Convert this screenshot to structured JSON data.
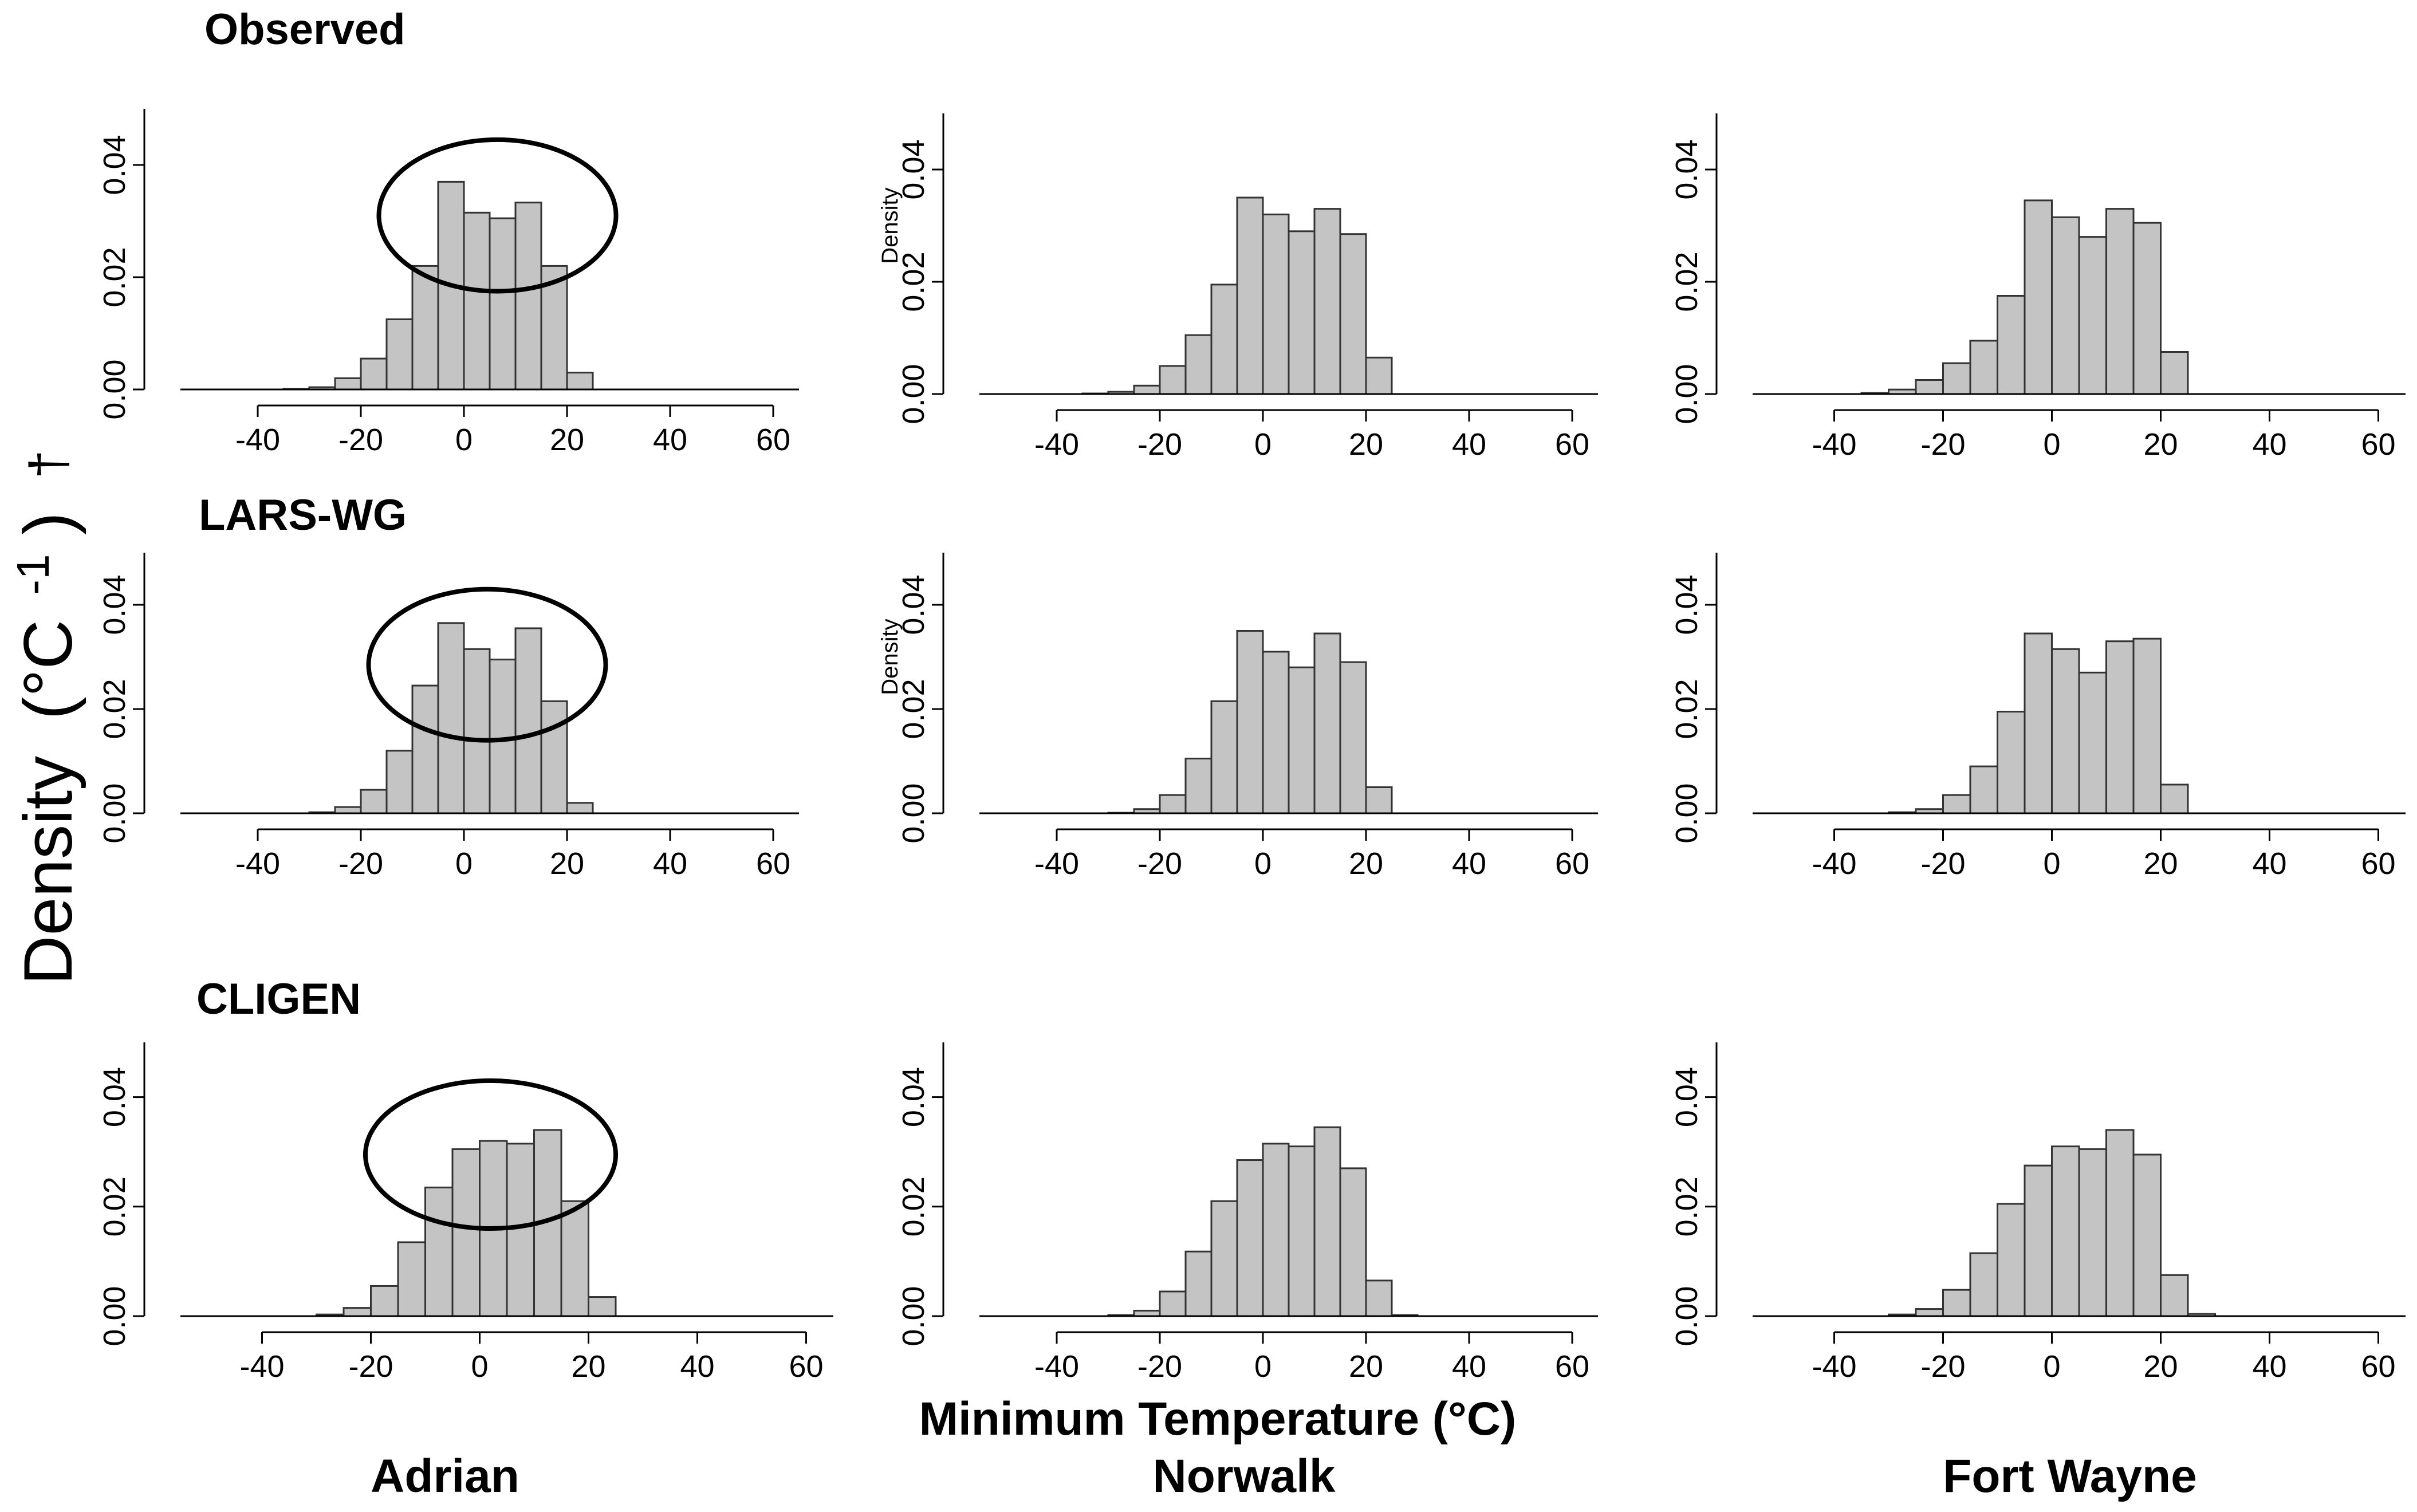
{
  "figure": {
    "yaxis_title": "Density",
    "yaxis_unit": "(°C",
    "yaxis_exp": "-1",
    "yaxis_close": ")",
    "yaxis_mark": "†",
    "xaxis_title": "Minimum Temperature (°C)",
    "row_titles": [
      "Observed",
      "LARS-WG",
      "CLIGEN"
    ],
    "col_titles": [
      "Adrian",
      "Norwalk",
      "Fort Wayne"
    ],
    "inner_density_label": "Density",
    "colors": {
      "bar_fill": "#c4c4c4",
      "bar_stroke": "#333333",
      "axis": "#000000",
      "ellipse": "#000000"
    }
  },
  "chart_data": [
    {
      "id": "observed-adrian",
      "type": "bar",
      "model": "Observed",
      "station": "Adrian",
      "xlabel": "",
      "ylabel": "Density",
      "xlim": [
        -55,
        65
      ],
      "ylim": [
        0,
        0.05
      ],
      "xticks": [
        -40,
        -20,
        0,
        20,
        40,
        60
      ],
      "yticks": [
        0.0,
        0.02,
        0.04
      ],
      "xtick_labels": [
        "-40",
        "-20",
        "0",
        "20",
        "40",
        "60"
      ],
      "ytick_labels": [
        "0.00",
        "0.02",
        "0.04"
      ],
      "bin_edges": [
        -35,
        -30,
        -25,
        -20,
        -15,
        -10,
        -5,
        0,
        5,
        10,
        15,
        20,
        25
      ],
      "values": [
        0.0001,
        0.0004,
        0.002,
        0.0055,
        0.0125,
        0.022,
        0.037,
        0.0315,
        0.0305,
        0.0333,
        0.022,
        0.003
      ],
      "highlight_ellipse": {
        "center_x": 6.5,
        "center_y": 0.031,
        "radius_x": 23,
        "radius_y": 0.0135
      }
    },
    {
      "id": "observed-norwalk",
      "type": "bar",
      "model": "Observed",
      "station": "Norwalk",
      "xlabel": "",
      "ylabel": "Density",
      "xlim": [
        -55,
        65
      ],
      "ylim": [
        0,
        0.05
      ],
      "xticks": [
        -40,
        -20,
        0,
        20,
        40,
        60
      ],
      "yticks": [
        0.0,
        0.02,
        0.04
      ],
      "xtick_labels": [
        "-40",
        "-20",
        "0",
        "20",
        "40",
        "60"
      ],
      "ytick_labels": [
        "0.00",
        "0.02",
        "0.04"
      ],
      "bin_edges": [
        -35,
        -30,
        -25,
        -20,
        -15,
        -10,
        -5,
        0,
        5,
        10,
        15,
        20,
        25,
        30
      ],
      "values": [
        0.0001,
        0.0004,
        0.0015,
        0.005,
        0.0105,
        0.0195,
        0.035,
        0.032,
        0.029,
        0.033,
        0.0285,
        0.0065,
        0
      ],
      "show_small_density": true
    },
    {
      "id": "observed-fortwayne",
      "type": "bar",
      "model": "Observed",
      "station": "Fort Wayne",
      "xlabel": "",
      "ylabel": "Density",
      "xlim": [
        -55,
        65
      ],
      "ylim": [
        0,
        0.05
      ],
      "xticks": [
        -40,
        -20,
        0,
        20,
        40,
        60
      ],
      "yticks": [
        0.0,
        0.02,
        0.04
      ],
      "xtick_labels": [
        "-40",
        "-20",
        "0",
        "20",
        "40",
        "60"
      ],
      "ytick_labels": [
        "0.00",
        "0.02",
        "0.04"
      ],
      "bin_edges": [
        -35,
        -30,
        -25,
        -20,
        -15,
        -10,
        -5,
        0,
        5,
        10,
        15,
        20,
        25
      ],
      "values": [
        0.0002,
        0.0008,
        0.0025,
        0.0055,
        0.0095,
        0.0175,
        0.0345,
        0.0315,
        0.028,
        0.033,
        0.0305,
        0.0075
      ]
    },
    {
      "id": "larswg-adrian",
      "type": "bar",
      "model": "LARS-WG",
      "station": "Adrian",
      "xlabel": "",
      "ylabel": "Density",
      "xlim": [
        -55,
        65
      ],
      "ylim": [
        0,
        0.05
      ],
      "xticks": [
        -40,
        -20,
        0,
        20,
        40,
        60
      ],
      "yticks": [
        0.0,
        0.02,
        0.04
      ],
      "xtick_labels": [
        "-40",
        "-20",
        "0",
        "20",
        "40",
        "60"
      ],
      "ytick_labels": [
        "0.00",
        "0.02",
        "0.04"
      ],
      "bin_edges": [
        -35,
        -30,
        -25,
        -20,
        -15,
        -10,
        -5,
        0,
        5,
        10,
        15,
        20,
        25
      ],
      "values": [
        0,
        0.0002,
        0.0012,
        0.0045,
        0.012,
        0.0245,
        0.0365,
        0.0315,
        0.0295,
        0.0355,
        0.0215,
        0.002
      ],
      "highlight_ellipse": {
        "center_x": 4.5,
        "center_y": 0.0285,
        "radius_x": 23,
        "radius_y": 0.0145
      }
    },
    {
      "id": "larswg-norwalk",
      "type": "bar",
      "model": "LARS-WG",
      "station": "Norwalk",
      "xlabel": "",
      "ylabel": "Density",
      "xlim": [
        -55,
        65
      ],
      "ylim": [
        0,
        0.05
      ],
      "xticks": [
        -40,
        -20,
        0,
        20,
        40,
        60
      ],
      "yticks": [
        0.0,
        0.02,
        0.04
      ],
      "xtick_labels": [
        "-40",
        "-20",
        "0",
        "20",
        "40",
        "60"
      ],
      "ytick_labels": [
        "0.00",
        "0.02",
        "0.04"
      ],
      "bin_edges": [
        -35,
        -30,
        -25,
        -20,
        -15,
        -10,
        -5,
        0,
        5,
        10,
        15,
        20,
        25
      ],
      "values": [
        0,
        0.0001,
        0.0008,
        0.0035,
        0.0105,
        0.0215,
        0.035,
        0.031,
        0.028,
        0.0345,
        0.029,
        0.005
      ],
      "show_small_density": true
    },
    {
      "id": "larswg-fortwayne",
      "type": "bar",
      "model": "LARS-WG",
      "station": "Fort Wayne",
      "xlabel": "",
      "ylabel": "Density",
      "xlim": [
        -55,
        65
      ],
      "ylim": [
        0,
        0.05
      ],
      "xticks": [
        -40,
        -20,
        0,
        20,
        40,
        60
      ],
      "yticks": [
        0.0,
        0.02,
        0.04
      ],
      "xtick_labels": [
        "-40",
        "-20",
        "0",
        "20",
        "40",
        "60"
      ],
      "ytick_labels": [
        "0.00",
        "0.02",
        "0.04"
      ],
      "bin_edges": [
        -35,
        -30,
        -25,
        -20,
        -15,
        -10,
        -5,
        0,
        5,
        10,
        15,
        20,
        25
      ],
      "values": [
        0,
        0.0002,
        0.0008,
        0.0035,
        0.009,
        0.0195,
        0.0345,
        0.0315,
        0.027,
        0.033,
        0.0335,
        0.0055
      ]
    },
    {
      "id": "cligen-adrian",
      "type": "bar",
      "model": "CLIGEN",
      "station": "Adrian",
      "xlabel": "",
      "ylabel": "Density",
      "xlim": [
        -55,
        65
      ],
      "ylim": [
        0,
        0.05
      ],
      "xticks": [
        -40,
        -20,
        0,
        20,
        40,
        60
      ],
      "yticks": [
        0.0,
        0.02,
        0.04
      ],
      "xtick_labels": [
        "-40",
        "-20",
        "0",
        "20",
        "40",
        "60"
      ],
      "ytick_labels": [
        "0.00",
        "0.02",
        "0.04"
      ],
      "bin_edges": [
        -30,
        -25,
        -20,
        -15,
        -10,
        -5,
        0,
        5,
        10,
        15,
        20,
        25
      ],
      "values": [
        0.0003,
        0.0015,
        0.0055,
        0.0135,
        0.0235,
        0.0305,
        0.032,
        0.0315,
        0.034,
        0.021,
        0.0035
      ],
      "highlight_ellipse": {
        "center_x": 2,
        "center_y": 0.0295,
        "radius_x": 23,
        "radius_y": 0.0135
      }
    },
    {
      "id": "cligen-norwalk",
      "type": "bar",
      "model": "CLIGEN",
      "station": "Norwalk",
      "xlabel": "",
      "ylabel": "Density",
      "xlim": [
        -55,
        65
      ],
      "ylim": [
        0,
        0.05
      ],
      "xticks": [
        -40,
        -20,
        0,
        20,
        40,
        60
      ],
      "yticks": [
        0.0,
        0.02,
        0.04
      ],
      "xtick_labels": [
        "-40",
        "-20",
        "0",
        "20",
        "40",
        "60"
      ],
      "ytick_labels": [
        "0.00",
        "0.02",
        "0.04"
      ],
      "bin_edges": [
        -30,
        -25,
        -20,
        -15,
        -10,
        -5,
        0,
        5,
        10,
        15,
        20,
        25,
        30
      ],
      "values": [
        0.0002,
        0.001,
        0.0045,
        0.0118,
        0.021,
        0.0285,
        0.0315,
        0.031,
        0.0345,
        0.027,
        0.0065,
        0.0002
      ]
    },
    {
      "id": "cligen-fortwayne",
      "type": "bar",
      "model": "CLIGEN",
      "station": "Fort Wayne",
      "xlabel": "",
      "ylabel": "Density",
      "xlim": [
        -55,
        65
      ],
      "ylim": [
        0,
        0.05
      ],
      "xticks": [
        -40,
        -20,
        0,
        20,
        40,
        60
      ],
      "yticks": [
        0.0,
        0.02,
        0.04
      ],
      "xtick_labels": [
        "-40",
        "-20",
        "0",
        "20",
        "40",
        "60"
      ],
      "ytick_labels": [
        "0.00",
        "0.02",
        "0.04"
      ],
      "bin_edges": [
        -30,
        -25,
        -20,
        -15,
        -10,
        -5,
        0,
        5,
        10,
        15,
        20,
        25,
        30
      ],
      "values": [
        0.0003,
        0.0013,
        0.0048,
        0.0115,
        0.0205,
        0.0275,
        0.031,
        0.0305,
        0.034,
        0.0295,
        0.0075,
        0.0004
      ]
    }
  ]
}
